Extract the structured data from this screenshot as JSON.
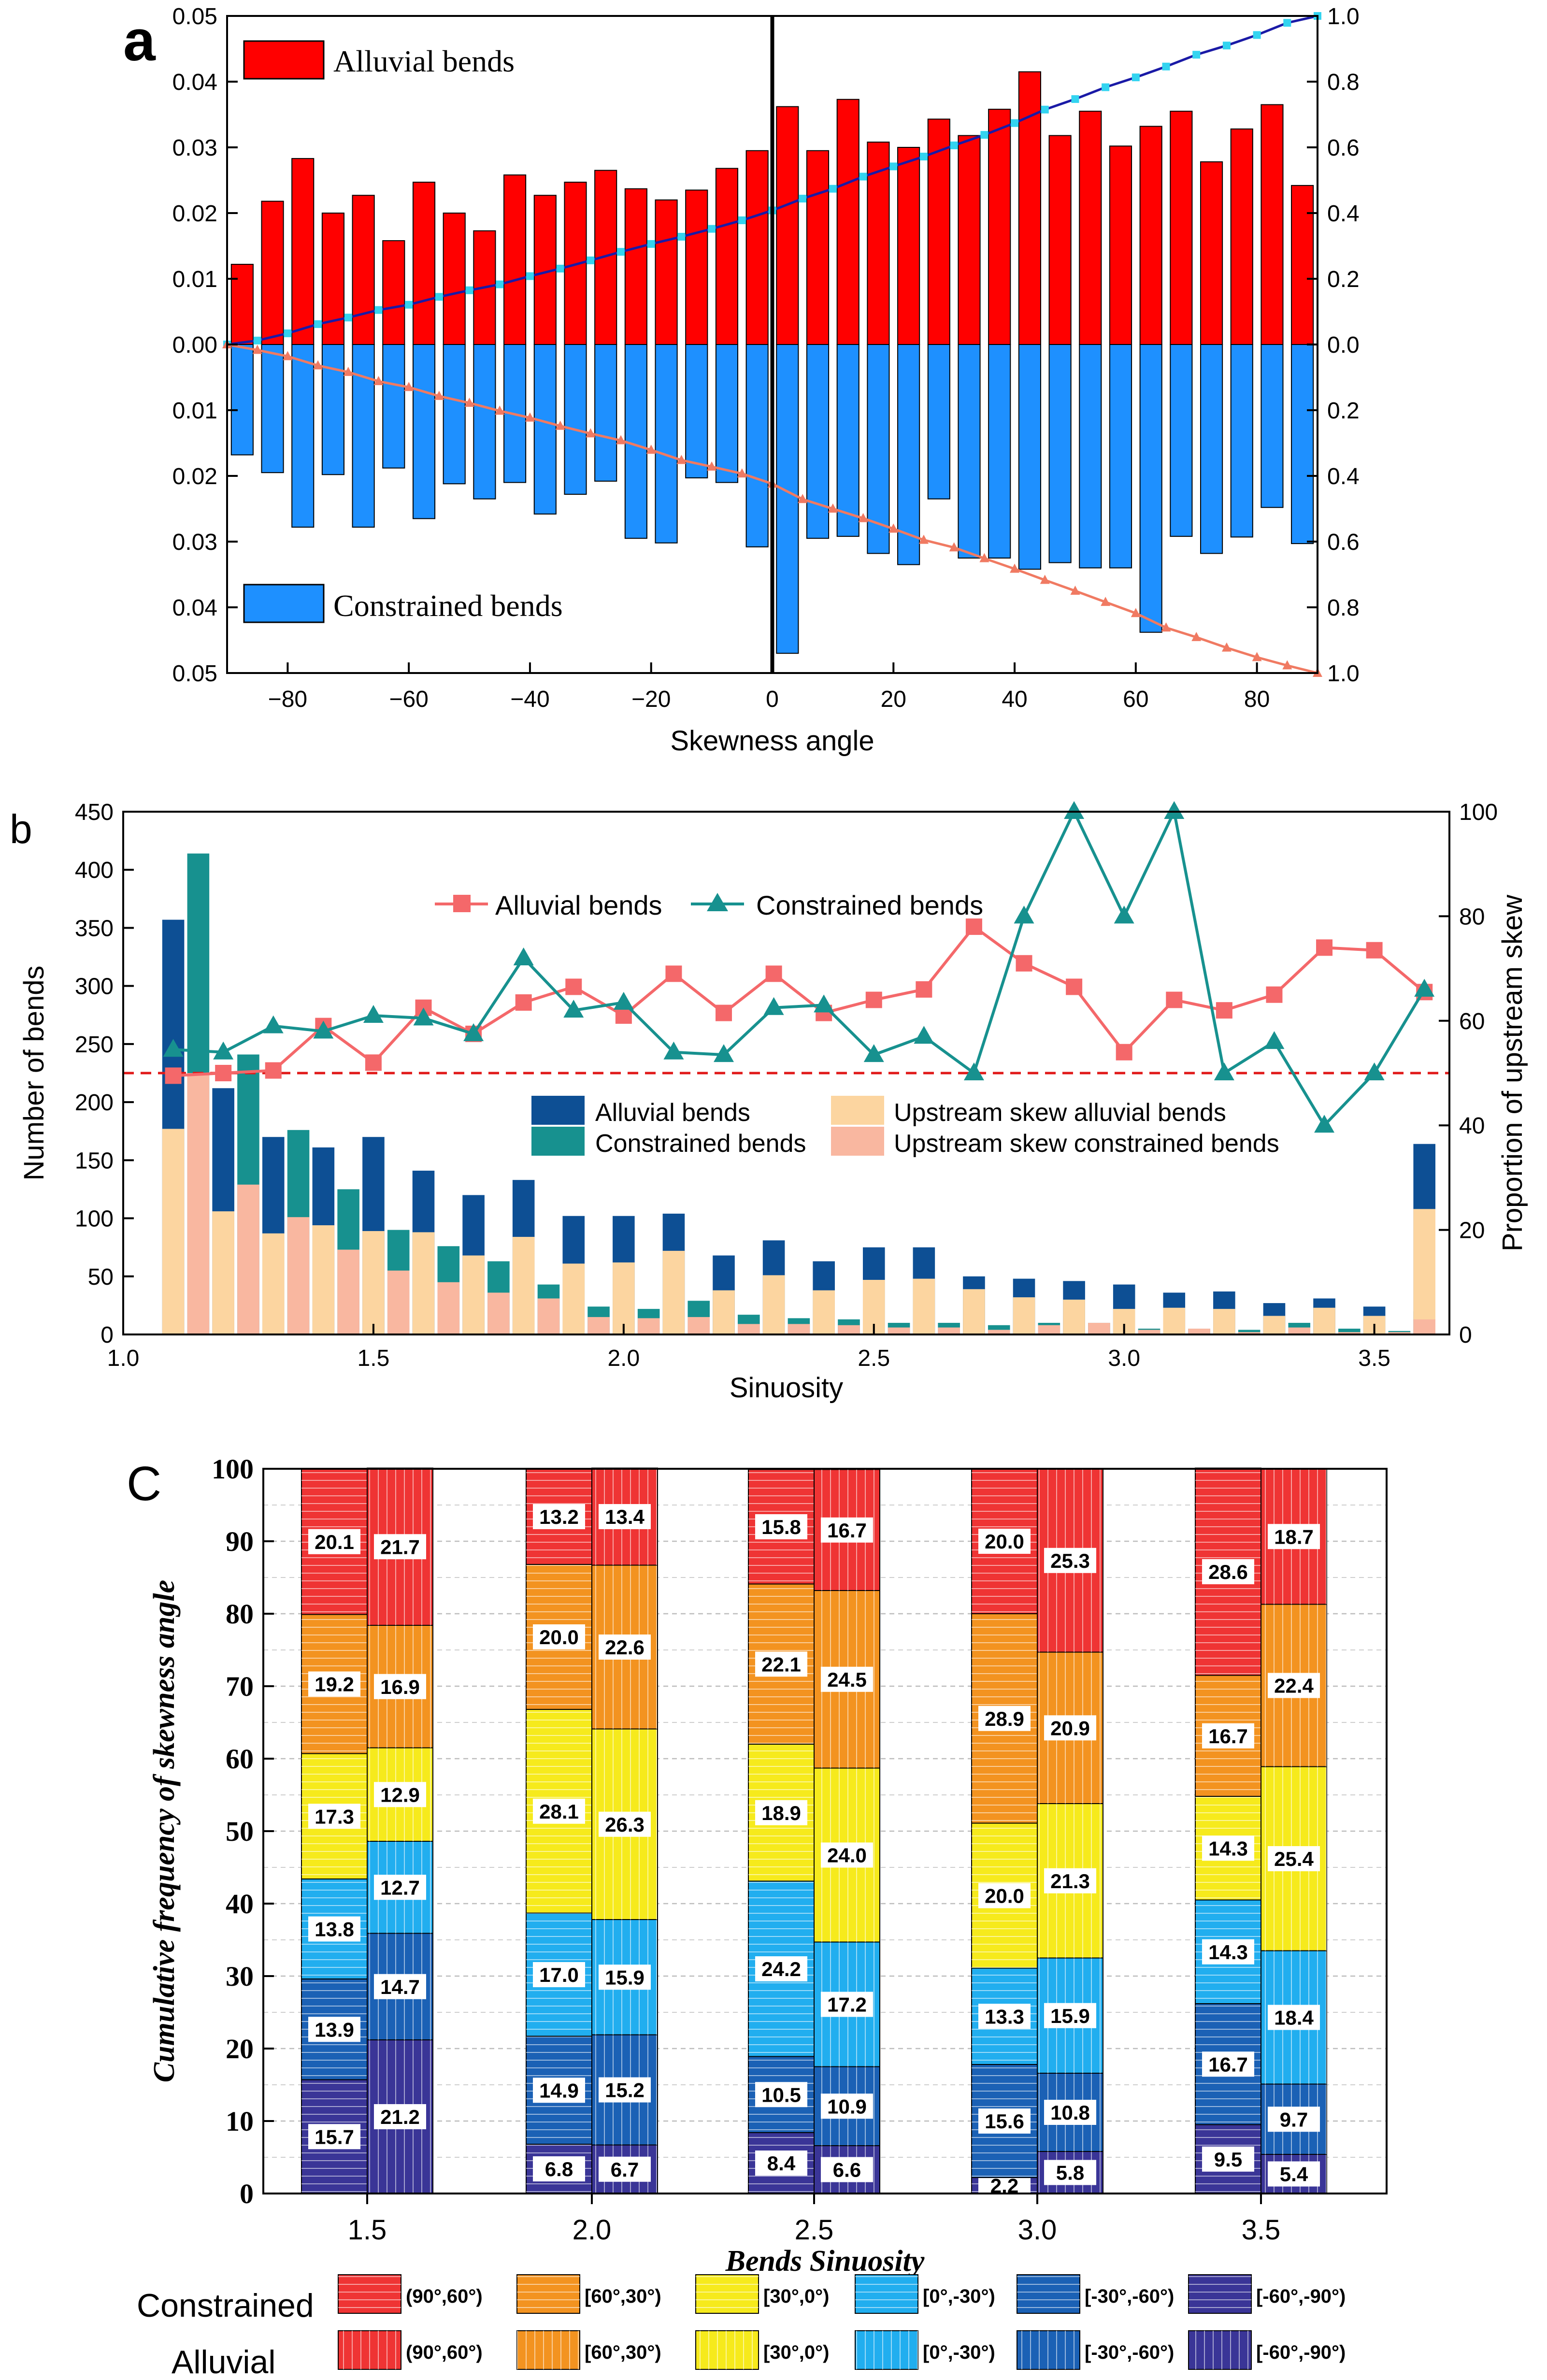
{
  "chart_data": [
    {
      "panel": "a",
      "type": "bar",
      "xlabel": "Skewness angle",
      "xlim": [
        -90,
        90
      ],
      "xticks": [
        -80,
        -60,
        -40,
        -20,
        0,
        20,
        40,
        60,
        80
      ],
      "ylim_left": [
        0,
        0.05
      ],
      "yticks_left": [
        "0.00",
        "0.01",
        "0.02",
        "0.03",
        "0.04",
        "0.05"
      ],
      "ylim_right": [
        0,
        1.0
      ],
      "yticks_right": [
        "0.0",
        "0.2",
        "0.4",
        "0.6",
        "0.8",
        "1.0"
      ],
      "bin_centers": [
        -87.5,
        -82.5,
        -77.5,
        -72.5,
        -67.5,
        -62.5,
        -57.5,
        -52.5,
        -47.5,
        -42.5,
        -37.5,
        -32.5,
        -27.5,
        -22.5,
        -17.5,
        -12.5,
        -7.5,
        -2.5,
        2.5,
        7.5,
        12.5,
        17.5,
        22.5,
        27.5,
        32.5,
        37.5,
        42.5,
        47.5,
        52.5,
        57.5,
        62.5,
        67.5,
        72.5,
        77.5,
        82.5,
        87.5
      ],
      "series": [
        {
          "name": "Alluvial bends",
          "color": "#ff0000",
          "values": [
            0.0122,
            0.0218,
            0.0283,
            0.02,
            0.0227,
            0.0158,
            0.0247,
            0.02,
            0.0173,
            0.0258,
            0.0227,
            0.0247,
            0.0265,
            0.0237,
            0.022,
            0.0235,
            0.0268,
            0.0295,
            0.0362,
            0.0295,
            0.0373,
            0.0308,
            0.03,
            0.0343,
            0.0318,
            0.0358,
            0.0415,
            0.0318,
            0.0355,
            0.0302,
            0.0332,
            0.0355,
            0.0278,
            0.0328,
            0.0365,
            0.0242
          ]
        },
        {
          "name": "Constrained bends",
          "color": "#1e90ff",
          "values": [
            0.0168,
            0.0195,
            0.0278,
            0.0198,
            0.0278,
            0.0188,
            0.0265,
            0.0212,
            0.0235,
            0.021,
            0.0258,
            0.0228,
            0.0208,
            0.0295,
            0.0302,
            0.0203,
            0.021,
            0.0308,
            0.047,
            0.0295,
            0.0292,
            0.0318,
            0.0335,
            0.0235,
            0.0325,
            0.0325,
            0.0342,
            0.0332,
            0.034,
            0.034,
            0.0438,
            0.0292,
            0.0318,
            0.0293,
            0.0248,
            0.0303
          ]
        }
      ],
      "cumulative_alluvial": [
        0.012,
        0.034,
        0.062,
        0.082,
        0.105,
        0.121,
        0.145,
        0.165,
        0.183,
        0.208,
        0.231,
        0.256,
        0.282,
        0.306,
        0.328,
        0.352,
        0.378,
        0.408,
        0.444,
        0.474,
        0.511,
        0.542,
        0.572,
        0.606,
        0.638,
        0.674,
        0.715,
        0.747,
        0.783,
        0.813,
        0.846,
        0.882,
        0.91,
        0.942,
        0.979,
        1.0
      ],
      "cumulative_constrained": [
        0.017,
        0.036,
        0.064,
        0.084,
        0.112,
        0.13,
        0.157,
        0.178,
        0.202,
        0.223,
        0.248,
        0.271,
        0.292,
        0.321,
        0.352,
        0.372,
        0.393,
        0.424,
        0.471,
        0.5,
        0.529,
        0.561,
        0.595,
        0.618,
        0.651,
        0.683,
        0.717,
        0.75,
        0.784,
        0.818,
        0.862,
        0.891,
        0.923,
        0.952,
        0.977,
        1.0
      ],
      "legend": [
        "Alluvial bends",
        "Constrained bends"
      ]
    },
    {
      "panel": "b",
      "type": "bar",
      "xlabel": "Sinuosity",
      "ylabel": "Number of bends",
      "ylabel_right": "Proportion of upstream skew",
      "xlim": [
        1.0,
        3.65
      ],
      "xticks": [
        "1.0",
        "1.5",
        "2.0",
        "2.5",
        "3.0",
        "3.5"
      ],
      "ylim": [
        0,
        450
      ],
      "yticks": [
        "0",
        "50",
        "100",
        "150",
        "200",
        "250",
        "300",
        "350",
        "400",
        "450"
      ],
      "ylim_right": [
        0,
        100
      ],
      "yticks_right": [
        "0",
        "20",
        "40",
        "60",
        "80",
        "100"
      ],
      "x": [
        1.1,
        1.15,
        1.2,
        1.25,
        1.3,
        1.35,
        1.4,
        1.45,
        1.5,
        1.55,
        1.6,
        1.65,
        1.7,
        1.75,
        1.8,
        1.85,
        1.9,
        1.95,
        2.0,
        2.05,
        2.1,
        2.15,
        2.2,
        2.25,
        2.3,
        2.35,
        2.4,
        2.45,
        2.5,
        2.55,
        2.6,
        2.65,
        2.7,
        2.75,
        2.8,
        2.85,
        2.9,
        2.95,
        3.0,
        3.05,
        3.1,
        3.15,
        3.2,
        3.25,
        3.3,
        3.35,
        3.4,
        3.45,
        3.5,
        3.55,
        3.6
      ],
      "series": [
        {
          "name": "Alluvial bends",
          "color": "#0d4f94",
          "values": [
            357,
            0,
            212,
            0,
            170,
            0,
            161,
            0,
            170,
            0,
            141,
            0,
            120,
            0,
            133,
            0,
            102,
            0,
            102,
            0,
            104,
            0,
            68,
            0,
            81,
            0,
            63,
            0,
            75,
            0,
            75,
            0,
            50,
            0,
            48,
            0,
            46,
            0,
            43,
            0,
            36,
            0,
            37,
            0,
            27,
            0,
            31,
            0,
            24,
            0,
            164
          ]
        },
        {
          "name": "Constrained bends",
          "color": "#17918f",
          "values": [
            0,
            414,
            0,
            241,
            0,
            176,
            0,
            125,
            0,
            90,
            0,
            76,
            0,
            63,
            0,
            43,
            0,
            24,
            0,
            22,
            0,
            29,
            0,
            17,
            0,
            14,
            0,
            13,
            0,
            10,
            0,
            10,
            0,
            8,
            0,
            10,
            0,
            10,
            0,
            5,
            0,
            5,
            0,
            4,
            0,
            10,
            0,
            5,
            0,
            3,
            20
          ]
        },
        {
          "name": "Upstream skew alluvial bends",
          "color": "#fcd5a0",
          "values": [
            177,
            0,
            106,
            0,
            87,
            0,
            94,
            0,
            89,
            0,
            88,
            0,
            68,
            0,
            84,
            0,
            61,
            0,
            62,
            0,
            72,
            0,
            38,
            0,
            51,
            0,
            38,
            0,
            47,
            0,
            48,
            0,
            39,
            0,
            32,
            0,
            30,
            0,
            22,
            0,
            23,
            0,
            22,
            0,
            16,
            0,
            23,
            0,
            16,
            0,
            108
          ]
        },
        {
          "name": "Upstream skew constrained bends",
          "color": "#f9b7a0",
          "values": [
            0,
            225,
            0,
            129,
            0,
            101,
            0,
            73,
            0,
            55,
            0,
            45,
            0,
            36,
            0,
            31,
            0,
            15,
            0,
            14,
            0,
            15,
            0,
            9,
            0,
            9,
            0,
            8,
            0,
            6,
            0,
            6,
            0,
            4,
            0,
            8,
            0,
            10,
            0,
            4,
            0,
            5,
            0,
            2,
            0,
            6,
            0,
            2,
            0,
            2,
            13
          ]
        }
      ],
      "line_x": [
        1.1,
        1.2,
        1.3,
        1.4,
        1.5,
        1.6,
        1.7,
        1.8,
        1.9,
        2.0,
        2.1,
        2.2,
        2.3,
        2.4,
        2.5,
        2.6,
        2.7,
        2.8,
        2.9,
        3.0,
        3.1,
        3.2,
        3.3,
        3.4,
        3.5,
        3.6
      ],
      "line_series": [
        {
          "name": "Alluvial bends",
          "color": "#f4686a",
          "marker": "square",
          "values": [
            49.5,
            50,
            50.5,
            59,
            52,
            62.5,
            57.5,
            63.5,
            66.5,
            61,
            69,
            61.5,
            69,
            61.5,
            64,
            66,
            78,
            71,
            66.5,
            54,
            64,
            62,
            65,
            74,
            73.5,
            65.5
          ]
        },
        {
          "name": "Constrained bends",
          "color": "#17918f",
          "marker": "triangle",
          "values": [
            54.5,
            54,
            59,
            58,
            61,
            60.5,
            57.5,
            72,
            62,
            63.5,
            54,
            53.5,
            62.5,
            63,
            53.5,
            57,
            50,
            80,
            100,
            80,
            100,
            50,
            56,
            40,
            50,
            66
          ]
        }
      ],
      "reference_line": 50,
      "legend_line": [
        "Alluvial bends",
        "Constrained bends"
      ],
      "legend_bars": [
        "Alluvial bends",
        "Upstream skew alluvial bends",
        "Constrained bends",
        "Upstream skew constrained bends"
      ]
    },
    {
      "panel": "C",
      "type": "bar",
      "stacked": true,
      "xlabel": "Bends Sinuosity",
      "ylabel": "Cumulative frequency of skewness angle",
      "ylim": [
        0,
        100
      ],
      "yticks": [
        "0",
        "10",
        "20",
        "30",
        "40",
        "50",
        "60",
        "70",
        "80",
        "90",
        "100"
      ],
      "categories": [
        "1.5",
        "2.0",
        "2.5",
        "3.0",
        "3.5"
      ],
      "bins": [
        "(90°,60°)",
        "[60°,30°)",
        "[30°,0°)",
        "[0°,-30°)",
        "[-30°,-60°)",
        "[-60°,-90°)"
      ],
      "bin_colors": [
        "#ef3434",
        "#f39320",
        "#f6ea1c",
        "#21aeef",
        "#1b61b5",
        "#3a3597"
      ],
      "series": [
        {
          "name": "Constrained",
          "values": [
            [
              20.1,
              19.2,
              17.3,
              13.8,
              13.9,
              15.7
            ],
            [
              13.2,
              20.0,
              28.1,
              17.0,
              14.9,
              6.8
            ],
            [
              15.8,
              22.1,
              18.9,
              24.2,
              10.5,
              8.4
            ],
            [
              20.0,
              28.9,
              20.0,
              13.3,
              15.6,
              2.2
            ],
            [
              28.6,
              16.7,
              14.3,
              14.3,
              16.7,
              9.5
            ]
          ]
        },
        {
          "name": "Alluvial",
          "values": [
            [
              21.7,
              16.9,
              12.9,
              12.7,
              14.7,
              21.2
            ],
            [
              13.4,
              22.6,
              26.3,
              15.9,
              15.2,
              6.7
            ],
            [
              16.7,
              24.5,
              24.0,
              17.2,
              10.9,
              6.6
            ],
            [
              25.3,
              20.9,
              21.3,
              15.9,
              10.8,
              5.8
            ],
            [
              18.7,
              22.4,
              25.4,
              18.4,
              9.7,
              5.4
            ]
          ]
        }
      ],
      "legend_rows": [
        "Constrained",
        "Alluvial"
      ]
    }
  ],
  "panel_letters": {
    "a": "a",
    "b": "b",
    "c": "C"
  },
  "panel_a_legend": {
    "alluvial": "Alluvial bends",
    "constrained": "Constrained bends"
  },
  "panel_b_legend": {
    "line_alluvial": "Alluvial bends",
    "line_constrained": "Constrained bends",
    "bar_alluvial": "Alluvial bends",
    "bar_constrained": "Constrained bends",
    "bar_up_alluvial": "Upstream skew alluvial bends",
    "bar_up_constrained": "Upstream skew constrained bends"
  },
  "panel_c_legend": {
    "row_constrained": "Constrained",
    "row_alluvial": "Alluvial"
  }
}
